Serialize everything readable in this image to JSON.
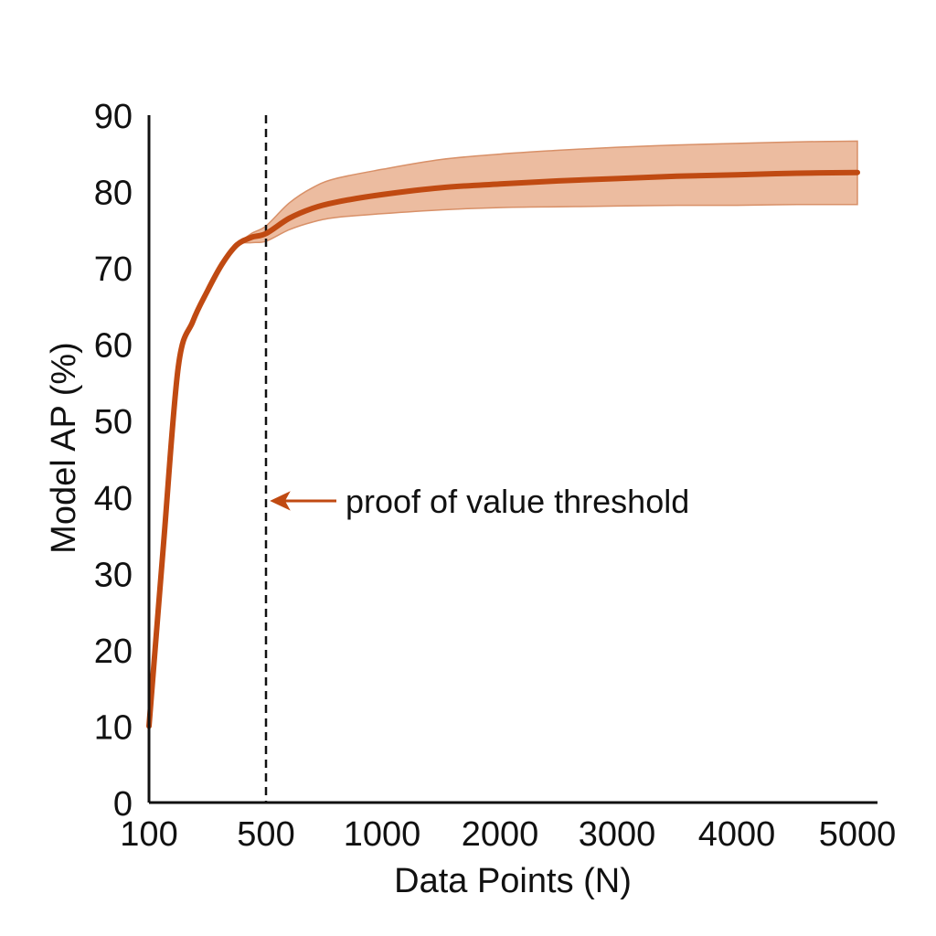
{
  "chart_data": {
    "type": "line",
    "title": "",
    "xlabel": "Data Points (N)",
    "ylabel": "Model AP (%)",
    "x_categories": [
      "100",
      "500",
      "1000",
      "2000",
      "3000",
      "4000",
      "5000"
    ],
    "ylim": [
      0,
      90
    ],
    "yticks": [
      "0",
      "10",
      "20",
      "30",
      "40",
      "50",
      "60",
      "70",
      "80",
      "90"
    ],
    "grid": false,
    "series": [
      {
        "x": [
          "100",
          "150",
          "200",
          "250",
          "300",
          "350",
          "400",
          "450",
          "500",
          "600",
          "700",
          "800",
          "1000",
          "1500",
          "2000",
          "2500",
          "3000",
          "3500",
          "4000",
          "4500",
          "5000"
        ],
        "y": [
          10,
          34,
          57,
          63,
          67,
          70.5,
          73,
          74,
          74.5,
          76.5,
          77.8,
          78.6,
          79.6,
          80.5,
          81.0,
          81.4,
          81.7,
          82.0,
          82.2,
          82.4,
          82.5
        ],
        "band_upper": [
          10,
          34,
          57,
          63,
          67,
          70.5,
          73,
          74.5,
          75.5,
          78.5,
          80.5,
          81.7,
          82.9,
          84.2,
          84.9,
          85.4,
          85.8,
          86.1,
          86.3,
          86.5,
          86.6
        ],
        "band_lower": [
          10,
          34,
          57,
          63,
          67,
          70.5,
          73,
          73.3,
          73.5,
          75.0,
          76.0,
          76.6,
          77.1,
          77.6,
          77.9,
          78.0,
          78.1,
          78.2,
          78.2,
          78.3,
          78.3
        ]
      }
    ],
    "threshold": {
      "x": "500",
      "label": "proof of value threshold",
      "label_y": 39.5
    },
    "colors": {
      "line": "#c04a12",
      "band": "#e9b08f",
      "band_edge": "#d89068",
      "axis": "#111111",
      "threshold": "#111111"
    }
  }
}
